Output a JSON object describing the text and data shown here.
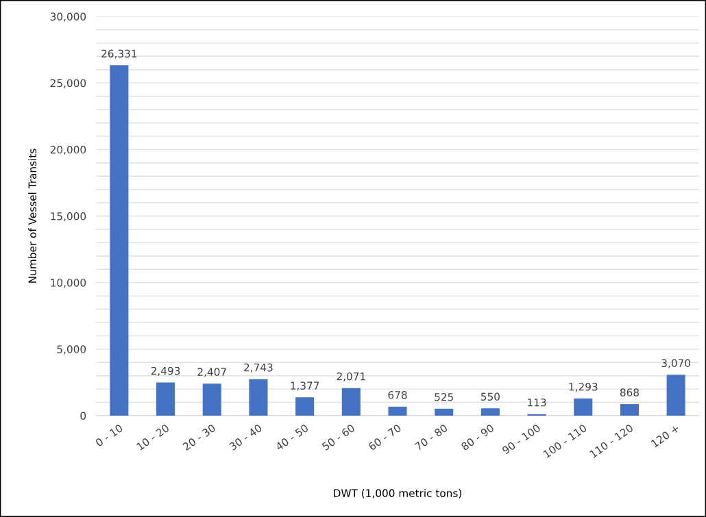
{
  "chart_data": {
    "type": "bar",
    "xlabel": "DWT (1,000 metric tons)",
    "ylabel": "Number of Vessel Transits",
    "categories": [
      "0 - 10",
      "10 - 20",
      "20 - 30",
      "30 - 40",
      "40 - 50",
      "50 - 60",
      "60 - 70",
      "70 - 80",
      "80 - 90",
      "90 - 100",
      "100 - 110",
      "110 - 120",
      "120 +"
    ],
    "values": [
      26331,
      2493,
      2407,
      2743,
      1377,
      2071,
      678,
      525,
      550,
      113,
      1293,
      868,
      3070
    ],
    "value_labels": [
      "26,331",
      "2,493",
      "2,407",
      "2,743",
      "1,377",
      "2,071",
      "678",
      "525",
      "550",
      "113",
      "1,293",
      "868",
      "3,070"
    ],
    "color": "#4472c4",
    "ylim": [
      0,
      30000
    ],
    "yticks": [
      {
        "value": 0,
        "label": "0"
      },
      {
        "value": 1000,
        "label": null
      },
      {
        "value": 2000,
        "label": null
      },
      {
        "value": 3000,
        "label": null
      },
      {
        "value": 4000,
        "label": null
      },
      {
        "value": 5000,
        "label": "5,000"
      },
      {
        "value": 6000,
        "label": null
      },
      {
        "value": 7000,
        "label": null
      },
      {
        "value": 8000,
        "label": null
      },
      {
        "value": 9000,
        "label": null
      },
      {
        "value": 10000,
        "label": "10,000"
      },
      {
        "value": 11000,
        "label": null
      },
      {
        "value": 12000,
        "label": null
      },
      {
        "value": 13000,
        "label": null
      },
      {
        "value": 14000,
        "label": null
      },
      {
        "value": 15000,
        "label": "15,000"
      },
      {
        "value": 16000,
        "label": null
      },
      {
        "value": 17000,
        "label": null
      },
      {
        "value": 18000,
        "label": null
      },
      {
        "value": 19000,
        "label": null
      },
      {
        "value": 20000,
        "label": "20,000"
      },
      {
        "value": 21000,
        "label": null
      },
      {
        "value": 22000,
        "label": null
      },
      {
        "value": 23000,
        "label": null
      },
      {
        "value": 24000,
        "label": null
      },
      {
        "value": 25000,
        "label": "25,000"
      },
      {
        "value": 26000,
        "label": null
      },
      {
        "value": 27000,
        "label": null
      },
      {
        "value": 28000,
        "label": null
      },
      {
        "value": 29000,
        "label": null
      },
      {
        "value": 30000,
        "label": "30,000"
      }
    ],
    "grid": "y"
  }
}
